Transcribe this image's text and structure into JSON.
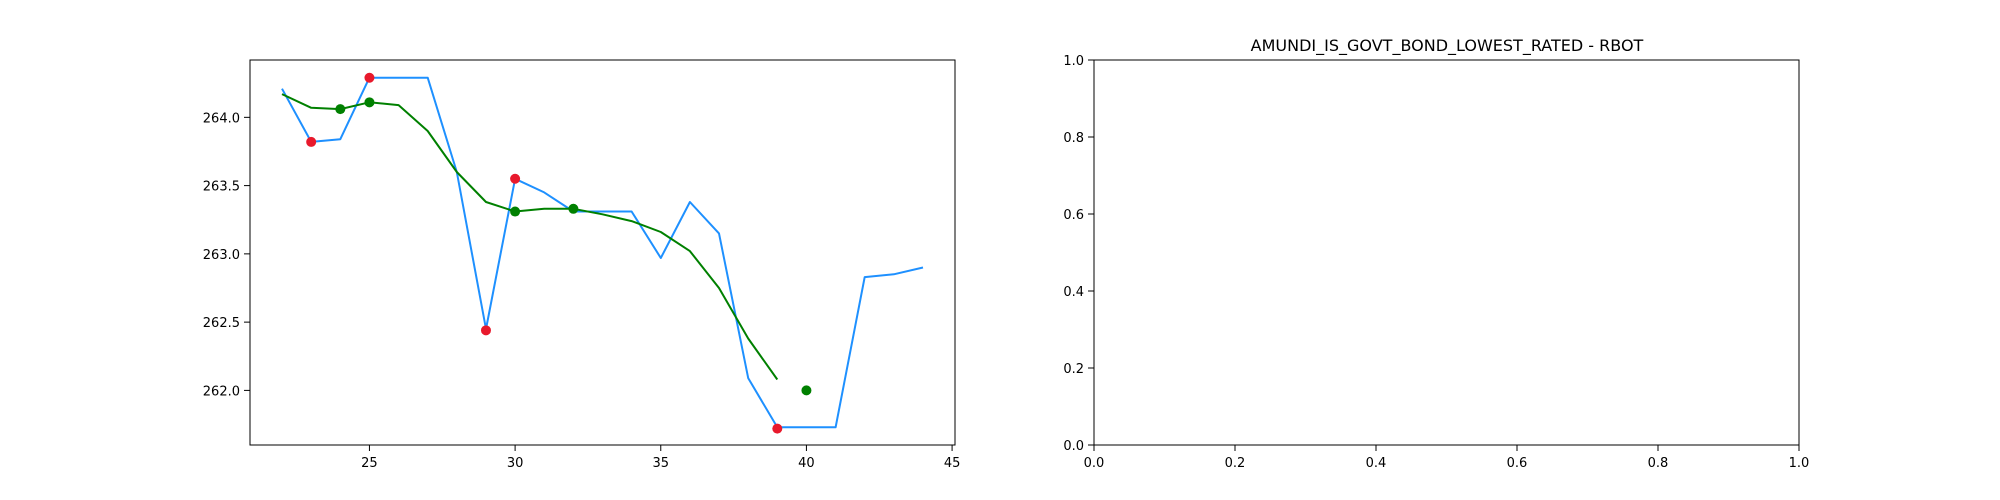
{
  "chart_data": [
    {
      "type": "line",
      "title": "",
      "xlabel": "",
      "ylabel": "",
      "xlim": [
        20.9,
        45.1
      ],
      "ylim": [
        261.6,
        264.42
      ],
      "xticks": [
        25,
        30,
        35,
        40,
        45
      ],
      "yticks": [
        262.0,
        262.5,
        263.0,
        263.5,
        264.0
      ],
      "xtick_labels": [
        "25",
        "30",
        "35",
        "40",
        "45"
      ],
      "ytick_labels": [
        "262.0",
        "262.5",
        "263.0",
        "263.5",
        "264.0"
      ],
      "grid": false,
      "series": [
        {
          "kind": "line",
          "color": "#1E90FF",
          "x": [
            22,
            23,
            24,
            25,
            26,
            27,
            28,
            29,
            30,
            31,
            32,
            33,
            34,
            35,
            36,
            37,
            38,
            39,
            40,
            41,
            42,
            43,
            44
          ],
          "y": [
            264.21,
            263.82,
            263.84,
            264.29,
            264.29,
            264.29,
            263.6,
            262.45,
            263.55,
            263.45,
            263.31,
            263.31,
            263.31,
            262.97,
            263.38,
            263.15,
            262.09,
            261.73,
            261.73,
            261.73,
            262.83,
            262.85,
            262.9
          ]
        },
        {
          "kind": "line",
          "color": "#008000",
          "x": [
            22,
            23,
            24,
            25,
            26,
            27,
            28,
            29,
            30,
            31,
            32,
            33,
            34,
            35,
            36,
            37,
            38,
            39
          ],
          "y": [
            264.17,
            264.07,
            264.06,
            264.11,
            264.09,
            263.9,
            263.6,
            263.38,
            263.31,
            263.33,
            263.33,
            263.29,
            263.24,
            263.16,
            263.02,
            262.75,
            262.38,
            262.08
          ]
        },
        {
          "kind": "scatter",
          "color": "#E8192C",
          "x": [
            23,
            25,
            29,
            30,
            39
          ],
          "y": [
            263.82,
            264.29,
            262.44,
            263.55,
            261.72
          ]
        },
        {
          "kind": "scatter",
          "color": "#008000",
          "x": [
            24,
            25,
            30,
            32,
            40
          ],
          "y": [
            264.06,
            264.11,
            263.31,
            263.33,
            262.0
          ]
        }
      ]
    },
    {
      "type": "line",
      "title": "AMUNDI_IS_GOVT_BOND_LOWEST_RATED - RBOT",
      "xlabel": "",
      "ylabel": "",
      "xlim": [
        0,
        1
      ],
      "ylim": [
        0,
        1
      ],
      "xticks": [
        0,
        0.2,
        0.4,
        0.6,
        0.8,
        1.0
      ],
      "yticks": [
        0,
        0.2,
        0.4,
        0.6,
        0.8,
        1.0
      ],
      "xtick_labels": [
        "0.0",
        "0.2",
        "0.4",
        "0.6",
        "0.8",
        "1.0"
      ],
      "ytick_labels": [
        "0.0",
        "0.2",
        "0.4",
        "0.6",
        "0.8",
        "1.0"
      ],
      "grid": false,
      "series": []
    }
  ]
}
